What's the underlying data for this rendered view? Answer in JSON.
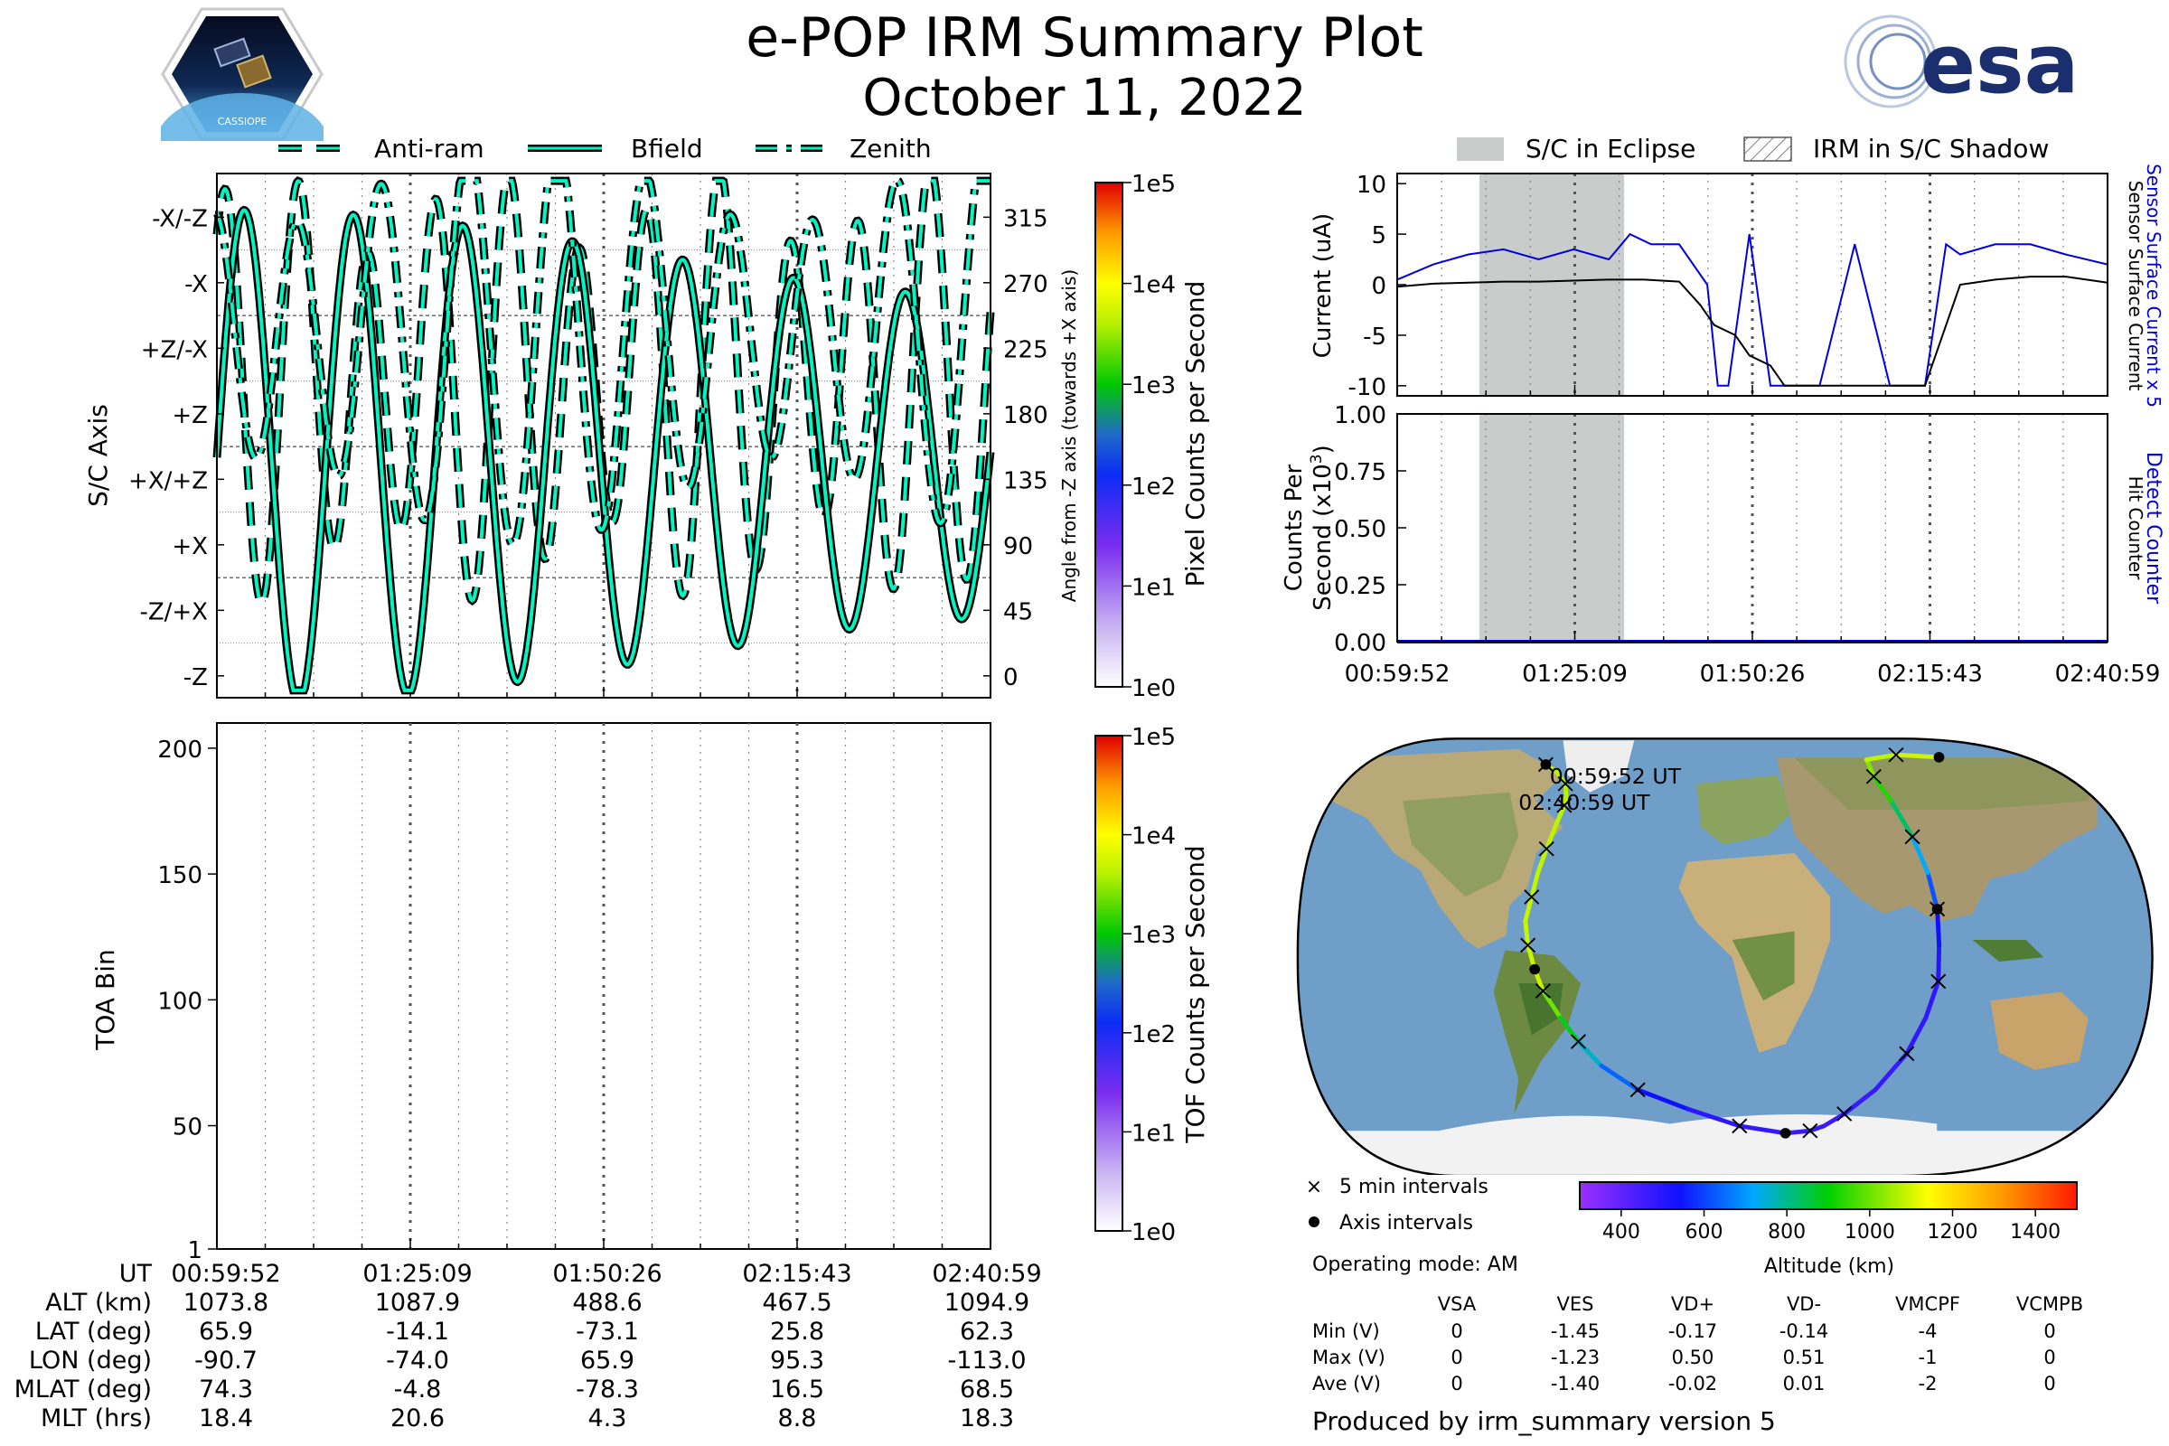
{
  "header": {
    "title": "e-POP IRM Summary Plot",
    "date": "October 11, 2022",
    "logo_left_text": "CASSIOPE",
    "logo_right_text": "esa"
  },
  "colors": {
    "trace_fill": "#00f5c3",
    "trace_edge": "#000000",
    "eclipse": "#c8cccb",
    "sensor_current": "#0000e0",
    "surface_current": "#000000",
    "land": "#cdb98f",
    "ocean": "#6f9fc8"
  },
  "legend_top_left": [
    {
      "label": "Anti-ram",
      "style": "dashed"
    },
    {
      "label": "Bfield",
      "style": "solid"
    },
    {
      "label": "Zenith",
      "style": "dashdot"
    }
  ],
  "legend_top_right": [
    {
      "label": "S/C in Eclipse",
      "style": "gray"
    },
    {
      "label": "IRM in S/C Shadow",
      "style": "hatch"
    }
  ],
  "time_labels": [
    "00:59:52",
    "01:25:09",
    "01:50:26",
    "02:15:43",
    "02:40:59"
  ],
  "axis_panel": {
    "ylabel": "S/C Axis",
    "right_label": "Angle from -Z axis (towards +X axis)",
    "left_ticks": [
      "-X/-Z",
      "-X",
      "+Z/-X",
      "+Z",
      "+X/+Z",
      "+X",
      "-Z/+X",
      "-Z"
    ],
    "right_ticks": [
      "315",
      "270",
      "225",
      "180",
      "135",
      "90",
      "45",
      "0"
    ],
    "colorbar_label": "Pixel Counts per Second",
    "colorbar_ticks": [
      "1e5",
      "1e4",
      "1e3",
      "1e2",
      "1e1",
      "1e0"
    ]
  },
  "toa_panel": {
    "ylabel": "TOA Bin",
    "yticks": [
      "200",
      "150",
      "100",
      "50",
      "1"
    ],
    "colorbar_label": "TOF Counts per Second",
    "colorbar_ticks": [
      "1e5",
      "1e4",
      "1e3",
      "1e2",
      "1e1",
      "1e0"
    ]
  },
  "current_panel": {
    "ylabel": "Current (uA)",
    "yticks": [
      "10",
      "5",
      "0",
      "-5",
      "-10"
    ],
    "right_label_1": "Sensor Surface Current x 5",
    "right_label_2": "Sensor Surface Current"
  },
  "counts_panel": {
    "ylabel_1": "Counts Per",
    "ylabel_2": "Second (x10",
    "ylabel_exp": "3",
    "ylabel_close": ")",
    "yticks": [
      "1.00",
      "0.75",
      "0.50",
      "0.25",
      "0.00"
    ],
    "right_label_1": "Detect Counter",
    "right_label_2": "Hit Counter"
  },
  "ephemeris": {
    "row_labels": [
      "UT",
      "ALT (km)",
      "LAT (deg)",
      "LON (deg)",
      "MLAT (deg)",
      "MLT (hrs)"
    ],
    "columns": [
      [
        "00:59:52",
        "1073.8",
        "65.9",
        "-90.7",
        "74.3",
        "18.4"
      ],
      [
        "01:25:09",
        "1087.9",
        "-14.1",
        "-74.0",
        "-4.8",
        "20.6"
      ],
      [
        "01:50:26",
        "488.6",
        "-73.1",
        "65.9",
        "-78.3",
        "4.3"
      ],
      [
        "02:15:43",
        "467.5",
        "25.8",
        "95.3",
        "16.5",
        "8.8"
      ],
      [
        "02:40:59",
        "1094.9",
        "62.3",
        "-113.0",
        "68.5",
        "18.3"
      ]
    ]
  },
  "map": {
    "start_label": "00:59:52 UT",
    "end_label": "02:40:59 UT",
    "legend_5min": "5 min intervals",
    "legend_axis": "Axis intervals",
    "operating_mode": "Operating mode: AM",
    "altitude_label": "Altitude (km)",
    "altitude_ticks": [
      "400",
      "600",
      "800",
      "1000",
      "1200",
      "1400"
    ]
  },
  "voltage_table": {
    "headers": [
      "VSA",
      "VES",
      "VD+",
      "VD-",
      "VMCPF",
      "VCMPB"
    ],
    "rows": [
      {
        "label": "Min (V)",
        "values": [
          "0",
          "-1.45",
          "-0.17",
          "-0.14",
          "-4",
          "0"
        ]
      },
      {
        "label": "Max (V)",
        "values": [
          "0",
          "-1.23",
          "0.50",
          "0.51",
          "-1",
          "0"
        ]
      },
      {
        "label": "Ave (V)",
        "values": [
          "0",
          "-1.40",
          "-0.02",
          "0.01",
          "-2",
          "0"
        ]
      }
    ]
  },
  "footer": "Produced by irm_summary version 5",
  "chart_data": [
    {
      "type": "line",
      "title": "",
      "xlabel": "",
      "ylabel": "S/C Axis",
      "ylim": [
        -15,
        345
      ],
      "x_range": [
        "00:59:52",
        "02:40:59"
      ],
      "series": [
        {
          "name": "Anti-ram",
          "style": "dashed"
        },
        {
          "name": "Bfield",
          "style": "solid"
        },
        {
          "name": "Zenith",
          "style": "dashdot"
        }
      ]
    },
    {
      "type": "heatmap",
      "ylabel": "TOA Bin",
      "ylim": [
        1,
        210
      ],
      "values": []
    },
    {
      "type": "line",
      "ylabel": "Current (uA)",
      "ylim": [
        -11,
        11
      ],
      "eclipse_interval": [
        "01:11:34",
        "01:32:10"
      ],
      "series": [
        {
          "name": "Sensor Surface Current x 5",
          "x": [
            "00:59:52",
            "01:05:00",
            "01:10:00",
            "01:15:00",
            "01:20:00",
            "01:25:00",
            "01:30:00",
            "01:33:00",
            "01:36:00",
            "01:40:00",
            "01:44:00",
            "01:45:30",
            "01:47:00",
            "01:50:00",
            "01:53:00",
            "01:55:00",
            "02:00:00",
            "02:05:00",
            "02:10:00",
            "02:15:00",
            "02:18:00",
            "02:20:00",
            "02:25:00",
            "02:30:00",
            "02:35:00",
            "02:40:59"
          ],
          "values": [
            0.5,
            2,
            3,
            3.5,
            2.5,
            3.5,
            2.5,
            5,
            4,
            4,
            0,
            -10,
            -10,
            5,
            -10,
            -10,
            -10,
            4,
            -10,
            -10,
            4,
            3,
            4,
            4,
            3,
            2
          ]
        },
        {
          "name": "Sensor Surface Current",
          "x": [
            "00:59:52",
            "01:05:00",
            "01:10:00",
            "01:15:00",
            "01:20:00",
            "01:25:00",
            "01:30:00",
            "01:35:00",
            "01:40:00",
            "01:43:00",
            "01:45:00",
            "01:48:00",
            "01:50:00",
            "01:53:00",
            "01:55:00",
            "02:00:00",
            "02:05:00",
            "02:10:00",
            "02:15:00",
            "02:20:00",
            "02:25:00",
            "02:30:00",
            "02:35:00",
            "02:40:59"
          ],
          "values": [
            -0.2,
            0.1,
            0.2,
            0.3,
            0.3,
            0.4,
            0.5,
            0.5,
            0.3,
            -2,
            -4,
            -5,
            -7,
            -8,
            -10,
            -10,
            -10,
            -10,
            -10,
            0,
            0.5,
            0.8,
            0.8,
            0.2
          ]
        }
      ]
    },
    {
      "type": "line",
      "ylabel": "Counts Per Second (x10^3)",
      "ylim": [
        0,
        1
      ],
      "series": [
        {
          "name": "Detect Counter",
          "x": [
            "00:59:52",
            "02:40:59"
          ],
          "values": [
            0,
            0
          ]
        },
        {
          "name": "Hit Counter",
          "x": [
            "00:59:52",
            "02:40:59"
          ],
          "values": [
            0,
            0
          ]
        }
      ]
    },
    {
      "type": "scatter",
      "title": "",
      "colorbar": "Altitude (km)",
      "clim": [
        300,
        1500
      ],
      "track": {
        "lon": [
          -130,
          -115,
          -100,
          -93,
          -90,
          -88,
          -87,
          -87,
          -87,
          -88,
          -86,
          -83,
          -80,
          -74,
          -68,
          -60,
          -45,
          -20,
          10,
          40,
          55,
          62,
          70,
          80,
          88,
          92,
          95,
          95,
          96,
          96,
          96,
          97,
          100,
          110,
          140,
          170
        ],
        "lat": [
          80,
          77,
          72,
          67,
          63,
          55,
          45,
          35,
          25,
          15,
          5,
          -5,
          -14,
          -25,
          -35,
          -45,
          -55,
          -63,
          -70,
          -73,
          -72,
          -70,
          -65,
          -55,
          -40,
          -25,
          -10,
          5,
          20,
          35,
          50,
          65,
          75,
          82,
          84,
          83
        ],
        "alt": [
          1080,
          1075,
          1074,
          1074,
          1074,
          1076,
          1078,
          1080,
          1083,
          1085,
          1087,
          1088,
          1087,
          1000,
          880,
          760,
          640,
          540,
          490,
          480,
          470,
          468,
          468,
          470,
          475,
          480,
          485,
          500,
          540,
          620,
          720,
          830,
          930,
          1020,
          1080,
          1094
        ]
      }
    }
  ]
}
